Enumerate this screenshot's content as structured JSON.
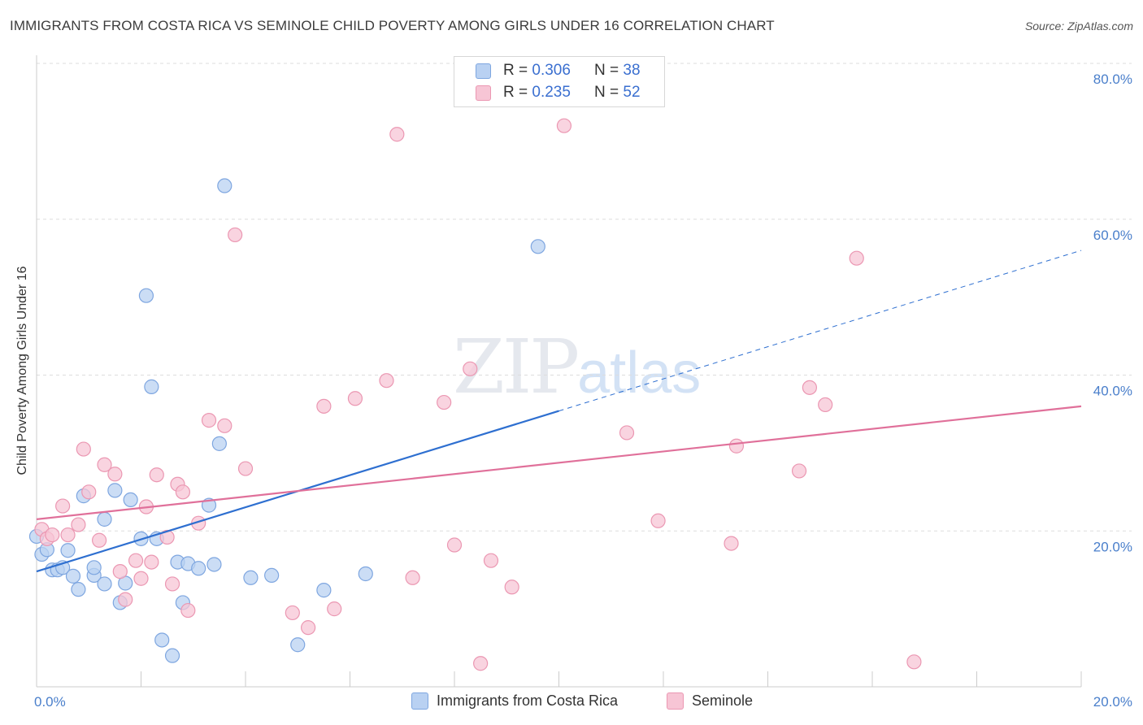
{
  "title": "IMMIGRANTS FROM COSTA RICA VS SEMINOLE CHILD POVERTY AMONG GIRLS UNDER 16 CORRELATION CHART",
  "source": "Source: ZipAtlas.com",
  "watermark": {
    "zip": "ZIP",
    "atlas": "atlas"
  },
  "legend": {
    "rows": [
      {
        "r_label": "R = ",
        "r_value": "0.306",
        "n_label": "N = ",
        "n_value": "38"
      },
      {
        "r_label": "R = ",
        "r_value": "0.235",
        "n_label": "N = ",
        "n_value": "52"
      }
    ]
  },
  "bottom_legend": [
    "Immigrants from Costa Rica",
    "Seminole"
  ],
  "colors": {
    "blue_fill": "#b9d1f2",
    "blue_stroke": "#7ea6e0",
    "blue_line": "#2e6fd0",
    "pink_fill": "#f7c5d5",
    "pink_stroke": "#eb97b2",
    "pink_line": "#e0709a",
    "grid": "#dddddd",
    "tick_text": "#4a7fcb"
  },
  "chart_data": {
    "type": "scatter",
    "title": "IMMIGRANTS FROM COSTA RICA VS SEMINOLE CHILD POVERTY AMONG GIRLS UNDER 16 CORRELATION CHART",
    "xlabel": "",
    "ylabel": "Child Poverty Among Girls Under 16",
    "xlim": [
      0,
      20
    ],
    "ylim": [
      0,
      80
    ],
    "x_tick_labels": [
      "0.0%",
      "20.0%"
    ],
    "y_tick_labels": [
      "20.0%",
      "40.0%",
      "60.0%",
      "80.0%"
    ],
    "y_ticks": [
      20,
      40,
      60,
      80
    ],
    "grid": true,
    "legend_position": "top-center",
    "series": [
      {
        "name": "Immigrants from Costa Rica",
        "R": 0.306,
        "N": 38,
        "trend": {
          "x0": 0,
          "y0": 14.8,
          "x1": 20,
          "y1": 56.0,
          "solid_until_x": 10
        },
        "points": [
          [
            0.0,
            19.3
          ],
          [
            0.1,
            17.0
          ],
          [
            0.2,
            17.6
          ],
          [
            0.3,
            15.0
          ],
          [
            0.4,
            15.0
          ],
          [
            0.5,
            15.3
          ],
          [
            0.6,
            17.5
          ],
          [
            0.8,
            12.5
          ],
          [
            0.7,
            14.2
          ],
          [
            0.9,
            24.5
          ],
          [
            1.1,
            14.3
          ],
          [
            1.1,
            15.3
          ],
          [
            1.3,
            13.2
          ],
          [
            1.3,
            21.5
          ],
          [
            1.5,
            25.2
          ],
          [
            1.6,
            10.8
          ],
          [
            1.7,
            13.3
          ],
          [
            1.8,
            24.0
          ],
          [
            2.0,
            19.0
          ],
          [
            2.1,
            50.2
          ],
          [
            2.2,
            38.5
          ],
          [
            2.3,
            19.0
          ],
          [
            2.4,
            6.0
          ],
          [
            2.6,
            4.0
          ],
          [
            2.7,
            16.0
          ],
          [
            2.8,
            10.8
          ],
          [
            2.9,
            15.8
          ],
          [
            3.1,
            15.2
          ],
          [
            3.3,
            23.3
          ],
          [
            3.4,
            15.7
          ],
          [
            3.5,
            31.2
          ],
          [
            3.6,
            64.3
          ],
          [
            4.1,
            14.0
          ],
          [
            4.5,
            14.3
          ],
          [
            5.0,
            5.4
          ],
          [
            5.5,
            12.4
          ],
          [
            6.3,
            14.5
          ],
          [
            9.6,
            56.5
          ]
        ]
      },
      {
        "name": "Seminole",
        "R": 0.235,
        "N": 52,
        "trend": {
          "x0": 0,
          "y0": 21.5,
          "x1": 20,
          "y1": 36.0
        },
        "points": [
          [
            0.1,
            20.2
          ],
          [
            0.2,
            19.0
          ],
          [
            0.3,
            19.5
          ],
          [
            0.5,
            23.2
          ],
          [
            0.6,
            19.5
          ],
          [
            0.8,
            20.8
          ],
          [
            0.9,
            30.5
          ],
          [
            1.0,
            25.0
          ],
          [
            1.2,
            18.8
          ],
          [
            1.3,
            28.5
          ],
          [
            1.5,
            27.3
          ],
          [
            1.6,
            14.8
          ],
          [
            1.7,
            11.2
          ],
          [
            1.9,
            16.2
          ],
          [
            2.0,
            13.9
          ],
          [
            2.1,
            23.1
          ],
          [
            2.2,
            16.0
          ],
          [
            2.3,
            27.2
          ],
          [
            2.5,
            19.2
          ],
          [
            2.6,
            13.2
          ],
          [
            2.7,
            26.0
          ],
          [
            2.8,
            25.0
          ],
          [
            2.9,
            9.8
          ],
          [
            3.1,
            21.0
          ],
          [
            3.3,
            34.2
          ],
          [
            3.6,
            33.5
          ],
          [
            3.8,
            58.0
          ],
          [
            4.0,
            28.0
          ],
          [
            4.9,
            9.5
          ],
          [
            5.2,
            7.6
          ],
          [
            5.5,
            36.0
          ],
          [
            5.7,
            10.0
          ],
          [
            6.1,
            37.0
          ],
          [
            6.7,
            39.3
          ],
          [
            6.9,
            70.9
          ],
          [
            7.2,
            14.0
          ],
          [
            7.8,
            36.5
          ],
          [
            8.0,
            18.2
          ],
          [
            8.3,
            40.8
          ],
          [
            8.5,
            3.0
          ],
          [
            8.7,
            16.2
          ],
          [
            9.1,
            12.8
          ],
          [
            10.1,
            72.0
          ],
          [
            11.3,
            32.6
          ],
          [
            11.9,
            21.3
          ],
          [
            13.3,
            18.4
          ],
          [
            13.4,
            30.9
          ],
          [
            14.6,
            27.7
          ],
          [
            14.8,
            38.4
          ],
          [
            15.1,
            36.2
          ],
          [
            15.7,
            55.0
          ],
          [
            16.8,
            3.2
          ]
        ]
      }
    ]
  }
}
